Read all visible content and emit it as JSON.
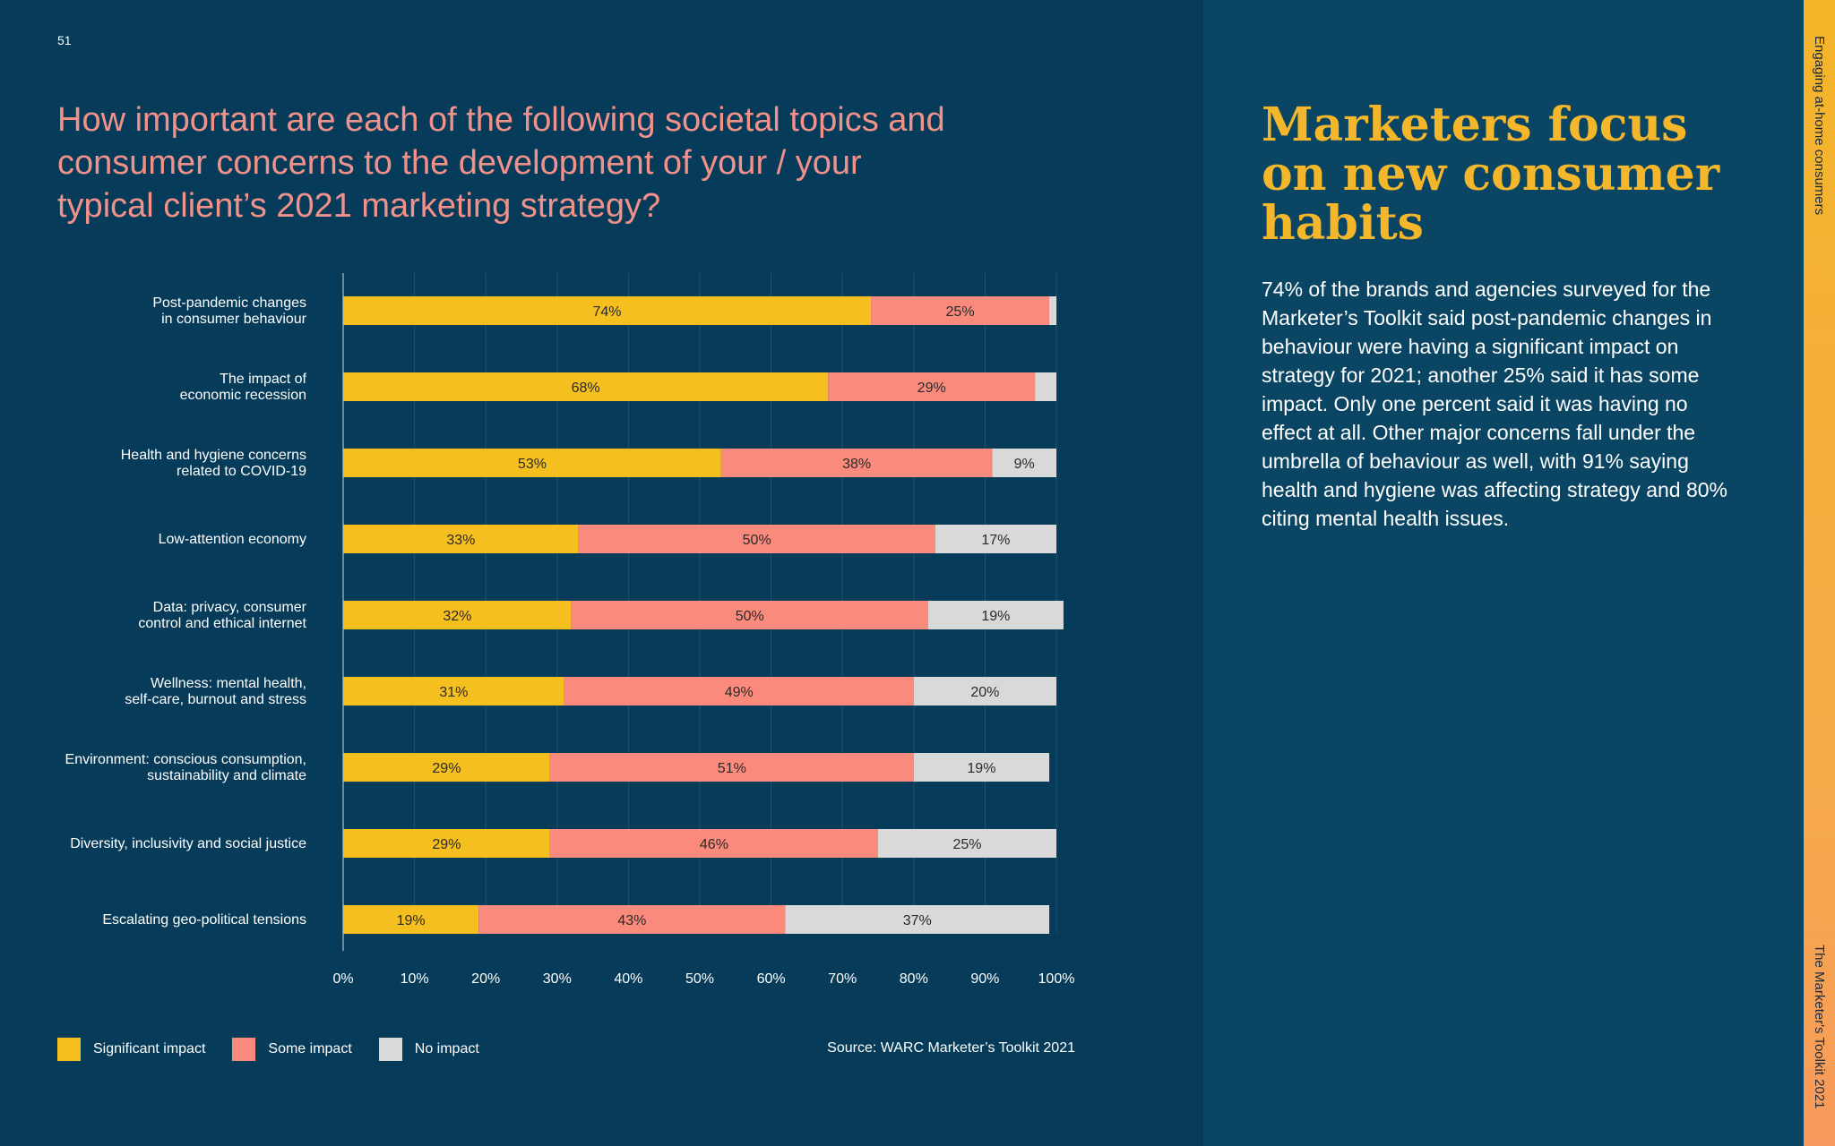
{
  "page": {
    "number": "51"
  },
  "side_strip": {
    "top_label": "Engaging at-home consumers",
    "bottom_label": "The Marketer's Toolkit 2021"
  },
  "question": "How important are each of the following societal topics and consumer concerns to the development of your / your typical client’s 2021 marketing strategy?",
  "heading": "Marketers focus on new consumer habits",
  "body_text": "74% of the brands and agencies surveyed for the Marketer’s Toolkit said post-pandemic changes in behaviour were having a significant impact on strategy for 2021; another 25% said it has some impact. Only one percent said it was having no effect at all. Other major concerns fall under the umbrella of behaviour as well, with 91% saying health and hygiene was affecting strategy and 80% citing mental health issues.",
  "source": "Source: WARC Marketer’s Toolkit 2021",
  "colors": {
    "significant": "#f4bf1f",
    "some": "#f98a7c",
    "none": "#d9d9d9",
    "label_text": "#2a2a2a"
  },
  "chart_data": {
    "type": "bar",
    "orientation": "horizontal",
    "stacked": true,
    "categories": [
      [
        "Post-pandemic changes",
        "in consumer behaviour"
      ],
      [
        "The impact of",
        "economic recession"
      ],
      [
        "Health and hygiene concerns",
        "related to COVID-19"
      ],
      [
        "Low-attention economy"
      ],
      [
        "Data: privacy, consumer",
        "control and ethical internet"
      ],
      [
        "Wellness: mental health,",
        "self-care, burnout and stress"
      ],
      [
        "Environment: conscious consumption,",
        "sustainability and climate"
      ],
      [
        "Diversity, inclusivity and social justice"
      ],
      [
        "Escalating geo-political tensions"
      ]
    ],
    "series": [
      {
        "name": "Significant impact",
        "color": "#f4bf1f",
        "values": [
          74,
          68,
          53,
          33,
          32,
          31,
          29,
          29,
          19
        ]
      },
      {
        "name": "Some impact",
        "color": "#f98a7c",
        "values": [
          25,
          29,
          38,
          50,
          50,
          49,
          51,
          46,
          43
        ]
      },
      {
        "name": "No impact",
        "color": "#d9d9d9",
        "values": [
          1,
          3,
          9,
          17,
          19,
          20,
          19,
          25,
          37
        ]
      }
    ],
    "value_labels": [
      [
        "74%",
        "25%",
        ""
      ],
      [
        "68%",
        "29%",
        ""
      ],
      [
        "53%",
        "38%",
        "9%"
      ],
      [
        "33%",
        "50%",
        "17%"
      ],
      [
        "32%",
        "50%",
        "19%"
      ],
      [
        "31%",
        "49%",
        "20%"
      ],
      [
        "29%",
        "51%",
        "19%"
      ],
      [
        "29%",
        "46%",
        "25%"
      ],
      [
        "19%",
        "43%",
        "37%"
      ]
    ],
    "x_ticks": [
      "0%",
      "10%",
      "20%",
      "30%",
      "40%",
      "50%",
      "60%",
      "70%",
      "80%",
      "90%",
      "100%"
    ],
    "xlim": [
      0,
      100
    ],
    "grid": true,
    "legend_position": "bottom-left"
  }
}
